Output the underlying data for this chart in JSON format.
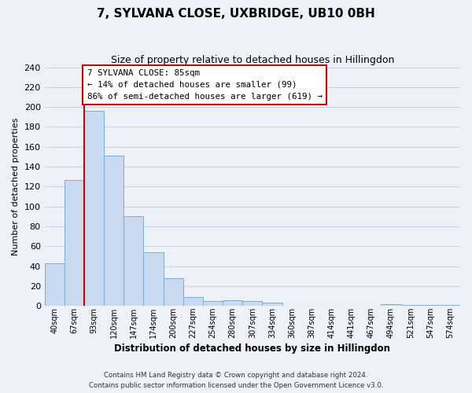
{
  "title": "7, SYLVANA CLOSE, UXBRIDGE, UB10 0BH",
  "subtitle": "Size of property relative to detached houses in Hillingdon",
  "xlabel": "Distribution of detached houses by size in Hillingdon",
  "ylabel": "Number of detached properties",
  "bin_labels": [
    "40sqm",
    "67sqm",
    "93sqm",
    "120sqm",
    "147sqm",
    "174sqm",
    "200sqm",
    "227sqm",
    "254sqm",
    "280sqm",
    "307sqm",
    "334sqm",
    "360sqm",
    "387sqm",
    "414sqm",
    "441sqm",
    "467sqm",
    "494sqm",
    "521sqm",
    "547sqm",
    "574sqm"
  ],
  "bar_heights": [
    43,
    127,
    196,
    151,
    90,
    54,
    28,
    9,
    5,
    6,
    5,
    3,
    0,
    0,
    0,
    0,
    0,
    2,
    1,
    1,
    1
  ],
  "bar_color": "#c8d9f0",
  "bar_edge_color": "#7aaed6",
  "vline_x_index": 2,
  "vline_color": "#cc0000",
  "annotation_title": "7 SYLVANA CLOSE: 85sqm",
  "annotation_line1": "← 14% of detached houses are smaller (99)",
  "annotation_line2": "86% of semi-detached houses are larger (619) →",
  "annotation_box_color": "#ffffff",
  "annotation_box_edge": "#cc0000",
  "ylim": [
    0,
    240
  ],
  "yticks": [
    0,
    20,
    40,
    60,
    80,
    100,
    120,
    140,
    160,
    180,
    200,
    220,
    240
  ],
  "footer_line1": "Contains HM Land Registry data © Crown copyright and database right 2024.",
  "footer_line2": "Contains public sector information licensed under the Open Government Licence v3.0.",
  "background_color": "#eef2f8",
  "grid_color": "#c8d4e8"
}
